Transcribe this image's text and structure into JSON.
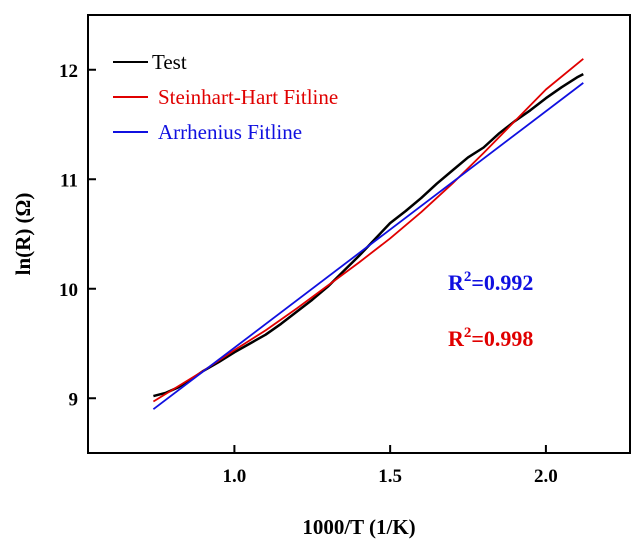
{
  "chart_data": {
    "type": "line",
    "xlabel": "1000/T (1/K)",
    "ylabel": "ln(R) (Ω)",
    "xlim": [
      0.53,
      2.27
    ],
    "ylim": [
      8.5,
      12.5
    ],
    "xticks": [
      1.0,
      1.5,
      2.0
    ],
    "xtick_labels": [
      "1.0",
      "1.5",
      "2.0"
    ],
    "yticks": [
      9,
      10,
      11,
      12
    ],
    "ytick_labels": [
      "9",
      "10",
      "11",
      "12"
    ],
    "legend_position": "top-left",
    "series": [
      {
        "name": "Test",
        "color": "#000000",
        "x": [
          0.74,
          0.78,
          0.82,
          0.86,
          0.9,
          0.95,
          1.0,
          1.05,
          1.1,
          1.15,
          1.2,
          1.25,
          1.3,
          1.35,
          1.4,
          1.45,
          1.5,
          1.55,
          1.6,
          1.65,
          1.7,
          1.75,
          1.8,
          1.85,
          1.9,
          1.95,
          2.0,
          2.05,
          2.1,
          2.12
        ],
        "y": [
          9.02,
          9.05,
          9.1,
          9.17,
          9.25,
          9.33,
          9.42,
          9.5,
          9.58,
          9.68,
          9.79,
          9.9,
          10.02,
          10.16,
          10.3,
          10.45,
          10.6,
          10.71,
          10.83,
          10.96,
          11.08,
          11.2,
          11.29,
          11.42,
          11.53,
          11.63,
          11.74,
          11.84,
          11.93,
          11.96
        ]
      },
      {
        "name": "Steinhart-Hart Fitline",
        "color": "#e00000",
        "x": [
          0.74,
          0.9,
          1.0,
          1.1,
          1.2,
          1.3,
          1.4,
          1.5,
          1.6,
          1.7,
          1.8,
          1.9,
          2.0,
          2.12
        ],
        "y": [
          8.97,
          9.25,
          9.44,
          9.62,
          9.82,
          10.03,
          10.24,
          10.46,
          10.7,
          10.96,
          11.24,
          11.53,
          11.82,
          12.1
        ]
      },
      {
        "name": "Arrhenius Fitline",
        "color": "#1010e0",
        "x": [
          0.74,
          2.12
        ],
        "y": [
          8.9,
          11.88
        ]
      }
    ],
    "annotations": [
      {
        "base": "R",
        "sup": "2",
        "value": "=0.992",
        "color": "#1010e0"
      },
      {
        "base": "R",
        "sup": "2",
        "value": "=0.998",
        "color": "#e00000"
      }
    ]
  }
}
